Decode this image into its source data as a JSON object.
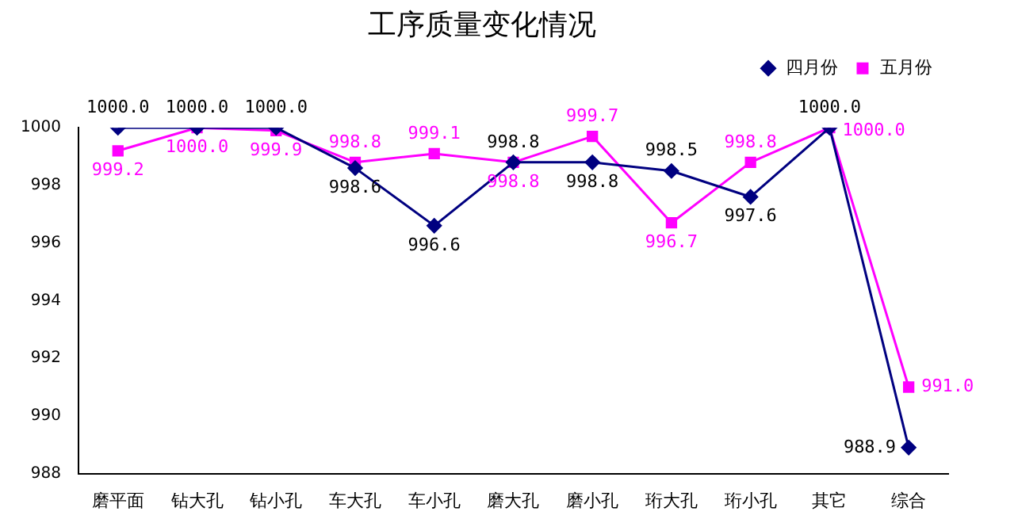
{
  "chart_data": {
    "type": "line",
    "title": "工序质量变化情况",
    "categories": [
      "磨平面",
      "钻大孔",
      "钻小孔",
      "车大孔",
      "车小孔",
      "磨大孔",
      "磨小孔",
      "珩大孔",
      "珩小孔",
      "其它",
      "综合"
    ],
    "series": [
      {
        "name": "四月份",
        "color": "#000080",
        "marker": "diamond",
        "values": [
          1000.0,
          1000.0,
          1000.0,
          998.6,
          996.6,
          998.8,
          998.8,
          998.5,
          997.6,
          1000.0,
          988.9
        ],
        "value_labels": [
          "1000.0",
          "1000.0",
          "1000.0",
          "998.6",
          "996.6",
          "998.8",
          "998.8",
          "998.5",
          "997.6",
          "1000.0",
          "988.9"
        ]
      },
      {
        "name": "五月份",
        "color": "#ff00ff",
        "marker": "square",
        "values": [
          999.2,
          1000.0,
          999.9,
          998.8,
          999.1,
          998.8,
          999.7,
          996.7,
          998.8,
          1000.0,
          991.0
        ],
        "value_labels": [
          "999.2",
          "1000.0",
          "999.9",
          "998.8",
          "999.1",
          "998.8",
          "999.7",
          "996.7",
          "998.8",
          "1000.0",
          "991.0"
        ]
      }
    ],
    "ylim": [
      988,
      1000
    ],
    "yticks": [
      988,
      990,
      992,
      994,
      996,
      998,
      1000
    ],
    "grid": false,
    "legend": "top right",
    "line_style": "solid"
  }
}
